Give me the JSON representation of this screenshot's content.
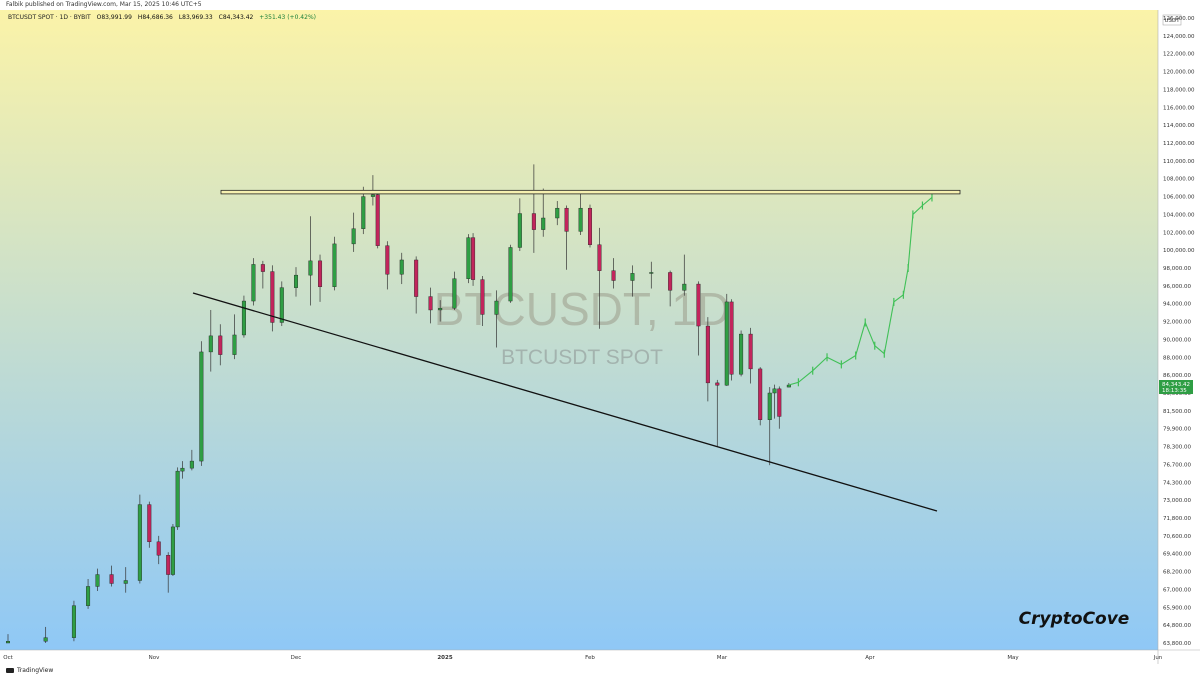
{
  "header": {
    "publisher_line": "Falbik published on TradingView.com, Mar 15, 2025 10:46 UTC+5"
  },
  "legend": {
    "symbol": "BTCUSDT SPOT · 1D · BYBIT",
    "open": "O83,991.99",
    "high": "H84,686.36",
    "low": "L83,969.33",
    "close": "C84,343.42",
    "change": "+351.43 (+0.42%)"
  },
  "watermark": {
    "main": "BTCUSDT, 1D",
    "sub": "BTCUSDT SPOT"
  },
  "branding": {
    "author_tag": "CryptoCove",
    "footer": "TradingView"
  },
  "axis": {
    "currency": "USDT",
    "price_labels": [
      "126,000.00",
      "124,000.00",
      "122,000.00",
      "120,000.00",
      "118,000.00",
      "116,000.00",
      "114,000.00",
      "112,000.00",
      "110,000.00",
      "108,000.00",
      "106,000.00",
      "104,000.00",
      "102,000.00",
      "100,000.00",
      "98,000.00",
      "96,000.00",
      "94,000.00",
      "92,000.00",
      "90,000.00",
      "88,000.00",
      "86,000.00",
      "83,000.00",
      "81,500.00",
      "79,900.00",
      "78,300.00",
      "76,700.00",
      "74,300.00",
      "73,000.00",
      "71,800.00",
      "70,600.00",
      "69,400.00",
      "68,200.00",
      "67,000.00",
      "65,900.00",
      "64,800.00",
      "63,800.00"
    ],
    "current_price": "84,343.42",
    "countdown": "18:13:35",
    "date_labels": [
      "Oct",
      "Nov",
      "Dec",
      "2025",
      "Feb",
      "Mar",
      "Apr",
      "May",
      "Jun"
    ]
  },
  "colors": {
    "up": "#2f9e44",
    "down": "#c2255c",
    "projection": "#40c057",
    "bg_top": "#fbf3a8",
    "bg_bottom": "#8fc8f6",
    "price_tag": "#2f9e44"
  },
  "chart_data": {
    "type": "candlestick",
    "title": "BTCUSDT, 1D",
    "timeframe": "1D",
    "y_unit": "USDT",
    "ylim": [
      63800,
      126000
    ],
    "xlim": [
      "2024-10-01",
      "2025-06-01"
    ],
    "candles": [
      {
        "date": "2024-10-01",
        "o": 63800,
        "h": 64300,
        "l": 63600,
        "c": 63900
      },
      {
        "date": "2024-10-09",
        "o": 63900,
        "h": 64700,
        "l": 63700,
        "c": 64100
      },
      {
        "date": "2024-10-15",
        "o": 64100,
        "h": 66300,
        "l": 63900,
        "c": 66000
      },
      {
        "date": "2024-10-18",
        "o": 66000,
        "h": 67700,
        "l": 65800,
        "c": 67200
      },
      {
        "date": "2024-10-20",
        "o": 67200,
        "h": 68400,
        "l": 66900,
        "c": 68000
      },
      {
        "date": "2024-10-23",
        "o": 68000,
        "h": 68600,
        "l": 67200,
        "c": 67400
      },
      {
        "date": "2024-10-26",
        "o": 67400,
        "h": 68500,
        "l": 66800,
        "c": 67600
      },
      {
        "date": "2024-10-29",
        "o": 67600,
        "h": 73400,
        "l": 67400,
        "c": 72700
      },
      {
        "date": "2024-10-31",
        "o": 72700,
        "h": 72900,
        "l": 69800,
        "c": 70200
      },
      {
        "date": "2024-11-02",
        "o": 70200,
        "h": 70600,
        "l": 68700,
        "c": 69300
      },
      {
        "date": "2024-11-04",
        "o": 69300,
        "h": 69500,
        "l": 66800,
        "c": 68000
      },
      {
        "date": "2024-11-05",
        "o": 68000,
        "h": 71400,
        "l": 67900,
        "c": 71200
      },
      {
        "date": "2024-11-06",
        "o": 71200,
        "h": 76300,
        "l": 71000,
        "c": 75800
      },
      {
        "date": "2024-11-07",
        "o": 75800,
        "h": 77000,
        "l": 74800,
        "c": 76200
      },
      {
        "date": "2024-11-09",
        "o": 76200,
        "h": 78000,
        "l": 75900,
        "c": 77000
      },
      {
        "date": "2024-11-11",
        "o": 77000,
        "h": 89800,
        "l": 76500,
        "c": 88600
      },
      {
        "date": "2024-11-13",
        "o": 88600,
        "h": 93300,
        "l": 86400,
        "c": 90400
      },
      {
        "date": "2024-11-15",
        "o": 90400,
        "h": 91700,
        "l": 87100,
        "c": 88300
      },
      {
        "date": "2024-11-18",
        "o": 88300,
        "h": 92800,
        "l": 87800,
        "c": 90500
      },
      {
        "date": "2024-11-20",
        "o": 90500,
        "h": 94900,
        "l": 90200,
        "c": 94300
      },
      {
        "date": "2024-11-22",
        "o": 94300,
        "h": 99100,
        "l": 93800,
        "c": 98400
      },
      {
        "date": "2024-11-24",
        "o": 98400,
        "h": 98800,
        "l": 95700,
        "c": 97600
      },
      {
        "date": "2024-11-26",
        "o": 97600,
        "h": 98300,
        "l": 90900,
        "c": 91900
      },
      {
        "date": "2024-11-28",
        "o": 91900,
        "h": 96500,
        "l": 91500,
        "c": 95800
      },
      {
        "date": "2024-12-01",
        "o": 95800,
        "h": 98100,
        "l": 94800,
        "c": 97200
      },
      {
        "date": "2024-12-04",
        "o": 97200,
        "h": 103800,
        "l": 93800,
        "c": 98800
      },
      {
        "date": "2024-12-06",
        "o": 98800,
        "h": 99500,
        "l": 94200,
        "c": 95900
      },
      {
        "date": "2024-12-09",
        "o": 95900,
        "h": 101500,
        "l": 95500,
        "c": 100700
      },
      {
        "date": "2024-12-13",
        "o": 100700,
        "h": 104200,
        "l": 99800,
        "c": 102400
      },
      {
        "date": "2024-12-15",
        "o": 102400,
        "h": 107100,
        "l": 101800,
        "c": 106000
      },
      {
        "date": "2024-12-17",
        "o": 106000,
        "h": 108400,
        "l": 105000,
        "c": 106200
      },
      {
        "date": "2024-12-18",
        "o": 106200,
        "h": 106700,
        "l": 100200,
        "c": 100500
      },
      {
        "date": "2024-12-20",
        "o": 100500,
        "h": 101000,
        "l": 95600,
        "c": 97300
      },
      {
        "date": "2024-12-23",
        "o": 97300,
        "h": 99700,
        "l": 96200,
        "c": 98900
      },
      {
        "date": "2024-12-26",
        "o": 98900,
        "h": 99300,
        "l": 92900,
        "c": 94800
      },
      {
        "date": "2024-12-29",
        "o": 94800,
        "h": 95800,
        "l": 91800,
        "c": 93300
      },
      {
        "date": "2024-12-31",
        "o": 93300,
        "h": 94400,
        "l": 92000,
        "c": 93500
      },
      {
        "date": "2025-01-03",
        "o": 93500,
        "h": 97600,
        "l": 93300,
        "c": 96800
      },
      {
        "date": "2025-01-06",
        "o": 96800,
        "h": 101800,
        "l": 96300,
        "c": 101400
      },
      {
        "date": "2025-01-07",
        "o": 101400,
        "h": 101900,
        "l": 96000,
        "c": 96700
      },
      {
        "date": "2025-01-09",
        "o": 96700,
        "h": 97100,
        "l": 91500,
        "c": 92800
      },
      {
        "date": "2025-01-12",
        "o": 92800,
        "h": 95500,
        "l": 89100,
        "c": 94300
      },
      {
        "date": "2025-01-15",
        "o": 94300,
        "h": 100600,
        "l": 94100,
        "c": 100300
      },
      {
        "date": "2025-01-17",
        "o": 100300,
        "h": 105800,
        "l": 99900,
        "c": 104100
      },
      {
        "date": "2025-01-20",
        "o": 104100,
        "h": 109600,
        "l": 99700,
        "c": 102300
      },
      {
        "date": "2025-01-22",
        "o": 102300,
        "h": 106900,
        "l": 101500,
        "c": 103600
      },
      {
        "date": "2025-01-25",
        "o": 103600,
        "h": 105500,
        "l": 102800,
        "c": 104700
      },
      {
        "date": "2025-01-27",
        "o": 104700,
        "h": 105000,
        "l": 97800,
        "c": 102100
      },
      {
        "date": "2025-01-30",
        "o": 102100,
        "h": 106400,
        "l": 101700,
        "c": 104700
      },
      {
        "date": "2025-02-01",
        "o": 104700,
        "h": 105100,
        "l": 100300,
        "c": 100600
      },
      {
        "date": "2025-02-03",
        "o": 100600,
        "h": 102500,
        "l": 91200,
        "c": 97700
      },
      {
        "date": "2025-02-06",
        "o": 97700,
        "h": 99100,
        "l": 95700,
        "c": 96600
      },
      {
        "date": "2025-02-10",
        "o": 96600,
        "h": 98300,
        "l": 94800,
        "c": 97400
      },
      {
        "date": "2025-02-14",
        "o": 97400,
        "h": 98700,
        "l": 95700,
        "c": 97500
      },
      {
        "date": "2025-02-18",
        "o": 97500,
        "h": 97700,
        "l": 93700,
        "c": 95500
      },
      {
        "date": "2025-02-21",
        "o": 95500,
        "h": 99500,
        "l": 94900,
        "c": 96200
      },
      {
        "date": "2025-02-24",
        "o": 96200,
        "h": 96500,
        "l": 88200,
        "c": 91500
      },
      {
        "date": "2025-02-26",
        "o": 91500,
        "h": 92500,
        "l": 82300,
        "c": 84700
      },
      {
        "date": "2025-02-28",
        "o": 84700,
        "h": 85200,
        "l": 78300,
        "c": 84300
      },
      {
        "date": "2025-03-02",
        "o": 84300,
        "h": 95100,
        "l": 84200,
        "c": 94200
      },
      {
        "date": "2025-03-03",
        "o": 94200,
        "h": 94500,
        "l": 85100,
        "c": 86100
      },
      {
        "date": "2025-03-05",
        "o": 86100,
        "h": 91000,
        "l": 85800,
        "c": 90600
      },
      {
        "date": "2025-03-07",
        "o": 90600,
        "h": 91300,
        "l": 84600,
        "c": 86700
      },
      {
        "date": "2025-03-09",
        "o": 86700,
        "h": 86900,
        "l": 80200,
        "c": 80700
      },
      {
        "date": "2025-03-11",
        "o": 80700,
        "h": 84000,
        "l": 76600,
        "c": 83000
      },
      {
        "date": "2025-03-12",
        "o": 83000,
        "h": 84400,
        "l": 80800,
        "c": 83700
      },
      {
        "date": "2025-03-13",
        "o": 83700,
        "h": 84100,
        "l": 79900,
        "c": 81000
      },
      {
        "date": "2025-03-15",
        "o": 83991.99,
        "h": 84686.36,
        "l": 83969.33,
        "c": 84343.42
      }
    ],
    "projection": [
      {
        "date": "2025-03-17",
        "value": 84800
      },
      {
        "date": "2025-03-20",
        "value": 86500
      },
      {
        "date": "2025-03-23",
        "value": 88000
      },
      {
        "date": "2025-03-26",
        "value": 87200
      },
      {
        "date": "2025-03-29",
        "value": 88200
      },
      {
        "date": "2025-03-31",
        "value": 91900
      },
      {
        "date": "2025-04-02",
        "value": 89300
      },
      {
        "date": "2025-04-04",
        "value": 88400
      },
      {
        "date": "2025-04-06",
        "value": 94200
      },
      {
        "date": "2025-04-08",
        "value": 95000
      },
      {
        "date": "2025-04-09",
        "value": 98000
      },
      {
        "date": "2025-04-10",
        "value": 104000
      },
      {
        "date": "2025-04-12",
        "value": 105000
      },
      {
        "date": "2025-04-14",
        "value": 105900
      }
    ],
    "resistance_zone": {
      "start": "2024-11-01",
      "end": "2025-05-05",
      "lower": 106300,
      "upper": 106700
    },
    "trendline": {
      "start_date": "2024-11-13",
      "start_value": 93800,
      "end_date": "2025-04-14",
      "end_value": 74000
    }
  }
}
